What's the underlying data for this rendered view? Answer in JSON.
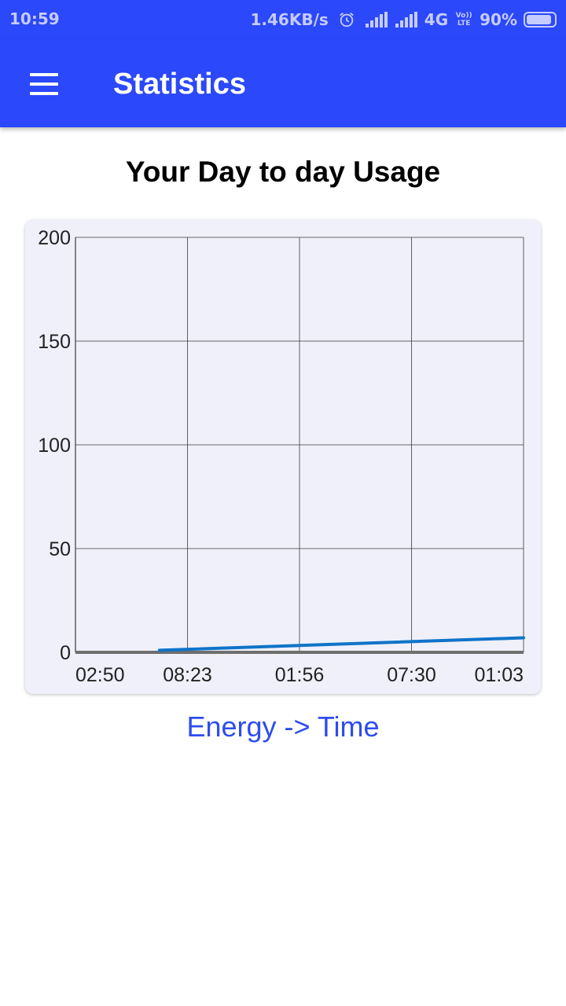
{
  "status_bar": {
    "time": "10:59",
    "speed": "1.46KB/s",
    "network": "4G",
    "volte_line1": "Vo))",
    "volte_line2": "LTE",
    "battery": "90%",
    "icons": [
      "alarm-icon",
      "signal-icon",
      "signal-icon",
      "battery-icon"
    ]
  },
  "app_bar": {
    "title": "Statistics",
    "menu_icon": "hamburger-menu-icon",
    "color": "#2b48fa"
  },
  "heading": "Your Day to day Usage",
  "caption": "Energy -> Time",
  "chart_data": {
    "type": "line",
    "title": "Your Day to day Usage",
    "xlabel": "Energy -> Time",
    "ylabel": "",
    "ylim": [
      0,
      200
    ],
    "yticks": [
      0,
      50,
      100,
      150,
      200
    ],
    "xticks": [
      "02:50",
      "08:23",
      "01:56",
      "07:30",
      "01:03"
    ],
    "grid": true,
    "series": [
      {
        "color": "#0f74c8",
        "x": [
          0.75,
          4
        ],
        "y": [
          1,
          7
        ]
      }
    ]
  }
}
